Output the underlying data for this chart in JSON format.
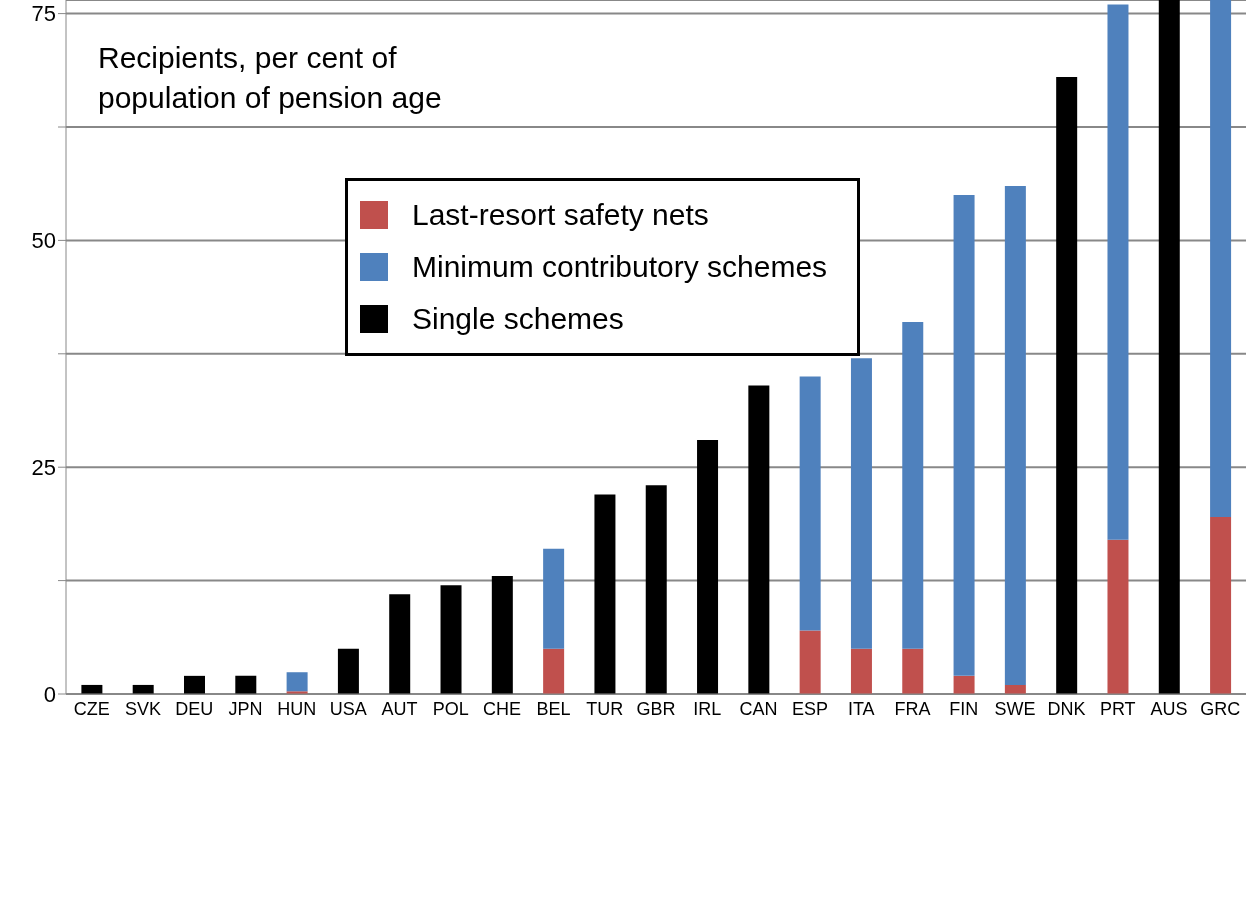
{
  "chart_data": {
    "type": "bar",
    "stacked": true,
    "annotations": [
      "Recipients, per cent of population of pension age"
    ],
    "categories": [
      "CZE",
      "SVK",
      "DEU",
      "JPN",
      "HUN",
      "USA",
      "AUT",
      "POL",
      "CHE",
      "BEL",
      "TUR",
      "GBR",
      "IRL",
      "CAN",
      "ESP",
      "ITA",
      "FRA",
      "FIN",
      "SWE",
      "DNK",
      "PRT",
      "AUS",
      "GRC"
    ],
    "series": [
      {
        "name": "Last-resort safety nets",
        "color": "#c0504d",
        "values": [
          null,
          null,
          null,
          null,
          0.3,
          null,
          null,
          null,
          null,
          5,
          null,
          null,
          null,
          null,
          7,
          5,
          5,
          2,
          1,
          null,
          17,
          null,
          19.5
        ]
      },
      {
        "name": "Minimum contributory schemes",
        "color": "#4f81bd",
        "values": [
          null,
          null,
          null,
          null,
          2.1,
          null,
          null,
          null,
          null,
          11,
          null,
          null,
          null,
          null,
          28,
          32,
          36,
          53,
          55,
          null,
          59,
          null,
          57
        ]
      },
      {
        "name": "Single schemes",
        "color": "#000000",
        "values": [
          1,
          1,
          2,
          2,
          null,
          5,
          11,
          12,
          13,
          null,
          22,
          23,
          28,
          34,
          null,
          null,
          null,
          null,
          null,
          68,
          null,
          76.5,
          null
        ]
      }
    ],
    "ylim": [
      0,
      76.5
    ],
    "yticks": [
      0,
      {
        "value": 12.5,
        "label": null
      },
      25,
      {
        "value": 37.5,
        "label": null
      },
      50,
      {
        "value": 62.5,
        "label": null
      },
      75
    ],
    "grid": "y",
    "legend": "top"
  }
}
